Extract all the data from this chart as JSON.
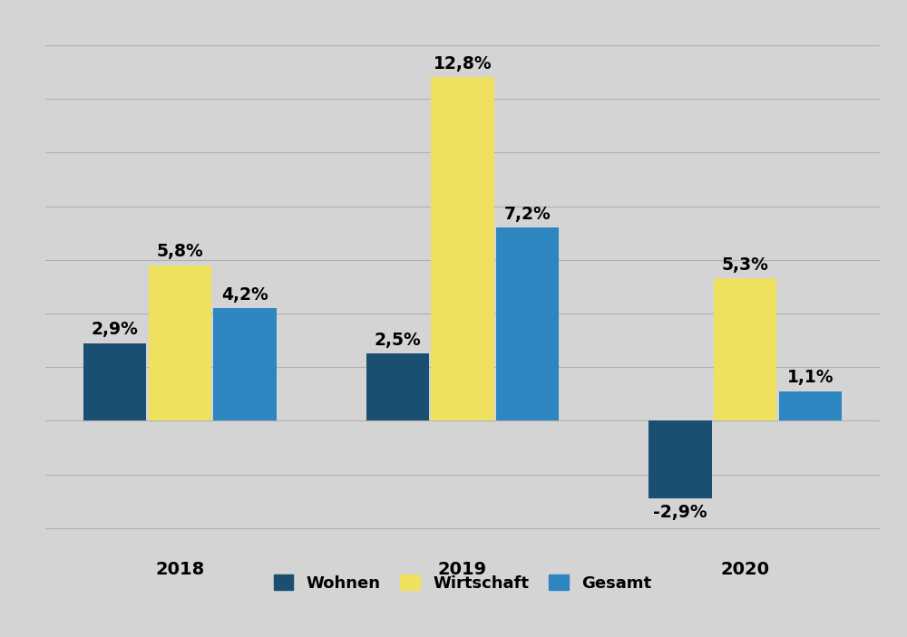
{
  "years": [
    "2018",
    "2019",
    "2020"
  ],
  "series": {
    "Wohnen": [
      2.9,
      2.5,
      -2.9
    ],
    "Wirtschaft": [
      5.8,
      12.8,
      5.3
    ],
    "Gesamt": [
      4.2,
      7.2,
      1.1
    ]
  },
  "colors": {
    "Wohnen": "#1b4f72",
    "Wirtschaft": "#f0e060",
    "Gesamt": "#2e86c1"
  },
  "background_color": "#d4d4d4",
  "bar_width": 0.23,
  "ylim": [
    -4.5,
    14.5
  ],
  "ytick_step": 2,
  "tick_fontsize": 14,
  "legend_fontsize": 13,
  "value_fontsize": 13.5
}
